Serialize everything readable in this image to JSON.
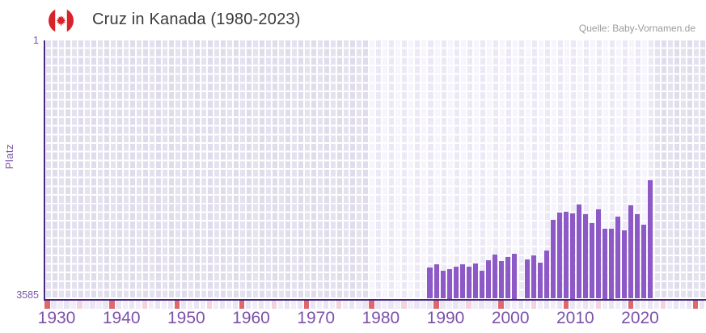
{
  "header": {
    "title": "Cruz in Kanada (1980-2023)",
    "source": "Quelle: Baby-Vornamen.de",
    "flag_icon": "canada-flag"
  },
  "chart_data": {
    "type": "bar",
    "title": "Cruz in Kanada (1980-2023)",
    "xlabel": "",
    "ylabel": "Platz",
    "yaxis": {
      "min": 1,
      "max": 3585,
      "inverted": true,
      "top_tick": "1",
      "bottom_tick": "3585"
    },
    "xaxis": {
      "start": 1930,
      "end": 2032,
      "decade_labels": [
        "1930",
        "1940",
        "1950",
        "1960",
        "1970",
        "1980",
        "1990",
        "2000",
        "2010",
        "2020"
      ]
    },
    "highlight_band": {
      "from": 1980,
      "to": 2023
    },
    "missing_years": [
      2003
    ],
    "points": [
      {
        "year": 1989,
        "rank": 3150
      },
      {
        "year": 1990,
        "rank": 3100
      },
      {
        "year": 1991,
        "rank": 3190
      },
      {
        "year": 1992,
        "rank": 3165
      },
      {
        "year": 1993,
        "rank": 3135
      },
      {
        "year": 1994,
        "rank": 3100
      },
      {
        "year": 1995,
        "rank": 3135
      },
      {
        "year": 1996,
        "rank": 3090
      },
      {
        "year": 1997,
        "rank": 3190
      },
      {
        "year": 1998,
        "rank": 3045
      },
      {
        "year": 1999,
        "rank": 2965
      },
      {
        "year": 2000,
        "rank": 3055
      },
      {
        "year": 2001,
        "rank": 3000
      },
      {
        "year": 2002,
        "rank": 2955
      },
      {
        "year": 2004,
        "rank": 3035
      },
      {
        "year": 2005,
        "rank": 2980
      },
      {
        "year": 2006,
        "rank": 3080
      },
      {
        "year": 2007,
        "rank": 2915
      },
      {
        "year": 2008,
        "rank": 2485
      },
      {
        "year": 2009,
        "rank": 2385
      },
      {
        "year": 2010,
        "rank": 2370
      },
      {
        "year": 2011,
        "rank": 2395
      },
      {
        "year": 2012,
        "rank": 2270
      },
      {
        "year": 2013,
        "rank": 2405
      },
      {
        "year": 2014,
        "rank": 2530
      },
      {
        "year": 2015,
        "rank": 2345
      },
      {
        "year": 2016,
        "rank": 2605
      },
      {
        "year": 2017,
        "rank": 2605
      },
      {
        "year": 2018,
        "rank": 2440
      },
      {
        "year": 2019,
        "rank": 2635
      },
      {
        "year": 2020,
        "rank": 2285
      },
      {
        "year": 2021,
        "rank": 2410
      },
      {
        "year": 2022,
        "rank": 2560
      },
      {
        "year": 2023,
        "rank": 1935
      }
    ],
    "colors": {
      "bar": "#8c59c7",
      "axis_line": "#46277d",
      "axis_label": "#7c51ab",
      "decade_tick": "#e0686d",
      "half_decade_tick": "#f3d3de",
      "band_col_even": "#f6f4fc",
      "band_col_odd": "#ece8f6",
      "outer_col_even": "#e5e2f0",
      "outer_col_odd": "#e0dcec",
      "strip_even": "#f1edf9",
      "strip_odd": "#e9e5f3",
      "title_text": "#3b3b3b",
      "source_text": "#9b9b9b"
    }
  }
}
